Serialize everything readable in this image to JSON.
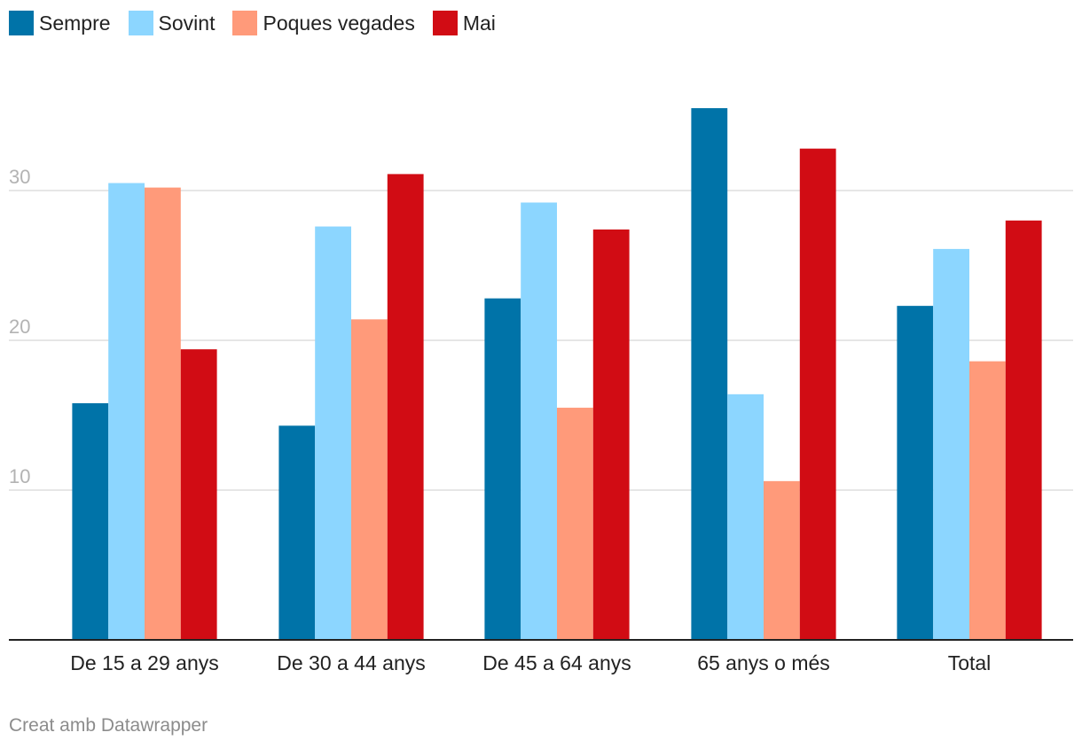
{
  "chart_data": {
    "type": "bar",
    "categories": [
      "De 15 a 29 anys",
      "De 30 a 44 anys",
      "De 45 a 64 anys",
      "65 anys o més",
      "Total"
    ],
    "series": [
      {
        "name": "Sempre",
        "color": "#0073a8",
        "values": [
          15.8,
          14.3,
          22.8,
          35.5,
          22.3
        ]
      },
      {
        "name": "Sovint",
        "color": "#8cd6ff",
        "values": [
          30.5,
          27.6,
          29.2,
          16.4,
          26.1
        ]
      },
      {
        "name": "Poques vegades",
        "color": "#ff9a7a",
        "values": [
          30.2,
          21.4,
          15.5,
          10.6,
          18.6
        ]
      },
      {
        "name": "Mai",
        "color": "#d10c14",
        "values": [
          19.4,
          31.1,
          27.4,
          32.8,
          28.0
        ]
      }
    ],
    "yticks": [
      "10",
      "20",
      "30"
    ],
    "ylim": [
      0,
      36
    ],
    "grid": true,
    "legend_position": "top-left"
  },
  "footer": {
    "credit": "Creat amb Datawrapper"
  }
}
